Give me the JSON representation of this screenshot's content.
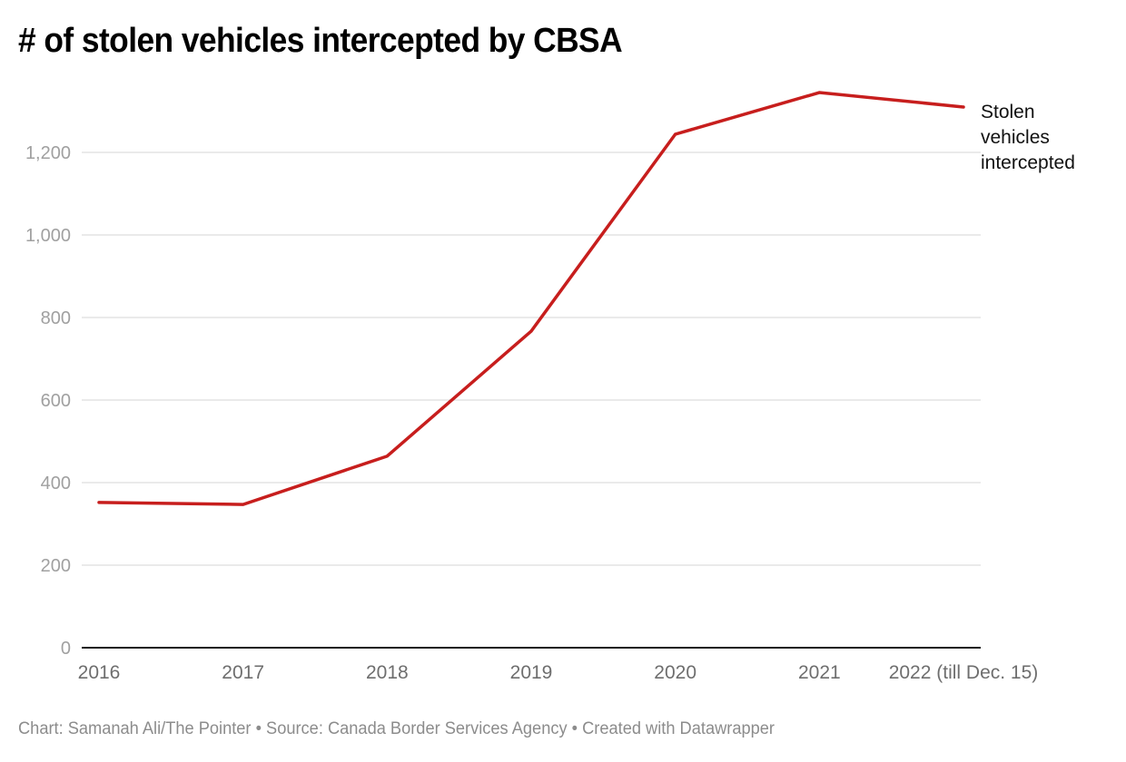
{
  "header": {
    "title": "# of stolen vehicles intercepted by CBSA"
  },
  "footer": {
    "text": "Chart: Samanah Ali/The Pointer • Source: Canada Border Services Agency • Created with Datawrapper"
  },
  "colors": {
    "series": "#c71e1d",
    "grid": "#e4e4e4",
    "axis": "#1a1a1a"
  },
  "chart_data": {
    "type": "line",
    "title": "# of stolen vehicles intercepted by CBSA",
    "xlabel": "",
    "ylabel": "",
    "categories": [
      "2016",
      "2017",
      "2018",
      "2019",
      "2020",
      "2021",
      "2022 (till Dec. 15)"
    ],
    "series": [
      {
        "name": "Stolen vehicles intercepted",
        "label_lines": [
          "Stolen",
          "vehicles",
          "intercepted"
        ],
        "values": [
          352,
          347,
          464,
          767,
          1244,
          1345,
          1310
        ]
      }
    ],
    "ylim": [
      0,
      1345
    ],
    "yticks": [
      0,
      200,
      400,
      600,
      800,
      1000,
      1200
    ],
    "ytick_labels": [
      "0",
      "200",
      "400",
      "600",
      "800",
      "1,000",
      "1,200"
    ],
    "grid": true,
    "legend": "direct-label-right"
  }
}
